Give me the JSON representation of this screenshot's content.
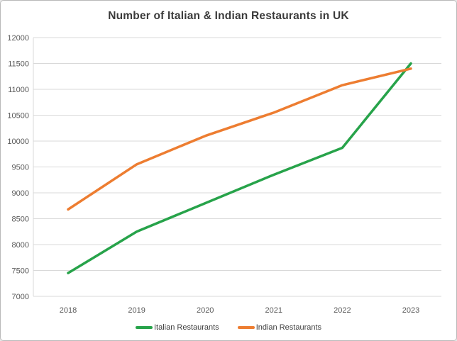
{
  "chart_data": {
    "type": "line",
    "title": "Number of Italian & Indian Restaurants in UK",
    "x": [
      "2018",
      "2019",
      "2020",
      "2021",
      "2022",
      "2023"
    ],
    "series": [
      {
        "name": "Italian Restaurants",
        "color": "#27A34A",
        "values": [
          7450,
          8250,
          8800,
          9350,
          9870,
          11500
        ]
      },
      {
        "name": "Indian Restaurants",
        "color": "#ED7D31",
        "values": [
          8680,
          9550,
          10100,
          10550,
          11080,
          11400
        ]
      }
    ],
    "ylim": [
      7000,
      12000
    ],
    "ytick_step": 500,
    "grid": "horizontal",
    "legend_position": "bottom",
    "colors": {
      "gridline": "#D9D9D9",
      "axis_line": "#D9D9D9",
      "tick_label": "#595959",
      "title": "#3B3B3B",
      "background": "#FFFFFF"
    }
  }
}
